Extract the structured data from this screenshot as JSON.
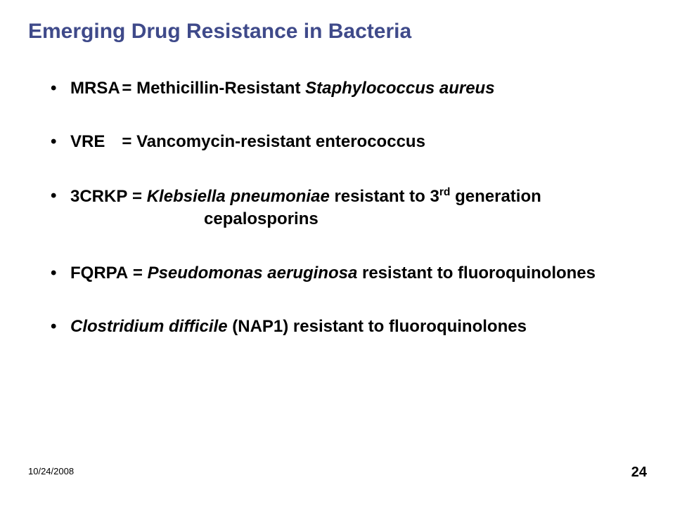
{
  "title": "Emerging Drug Resistance in Bacteria",
  "title_color": "#3f4a8a",
  "title_fontsize": 30,
  "body_fontsize": 24,
  "body_color": "#000000",
  "background_color": "#ffffff",
  "bullets": [
    {
      "abbrev": "MRSA",
      "abbrev_width_ch": "5.5",
      "eq": "= ",
      "pre": "Methicillin-Resistant ",
      "italic": "Staphylococcus aureus",
      "post": ""
    },
    {
      "abbrev": "VRE",
      "abbrev_width_ch": "5.5",
      "eq": "= ",
      "pre": "Vancomycin-resistant enterococcus",
      "italic": "",
      "post": ""
    },
    {
      "abbrev": "3CRKP",
      "abbrev_width_ch": "",
      "eq": " = ",
      "pre": "",
      "italic": "Klebsiella pneumoniae",
      "post_pre": " resistant to 3",
      "sup": "rd",
      "post_after": " generation",
      "cont": "cepalosporins"
    },
    {
      "abbrev": "FQRPA",
      "abbrev_width_ch": "",
      "eq": " = ",
      "pre": "",
      "italic": "Pseudomonas aeruginosa",
      "post": " resistant to fluoroquinolones"
    },
    {
      "abbrev": "",
      "abbrev_width_ch": "",
      "eq": "",
      "pre": "",
      "italic": "Clostridium difficile",
      "post": " (NAP1) resistant to fluoroquinolones"
    }
  ],
  "footer": {
    "date": "10/24/2008",
    "page": "24"
  },
  "footer_date_fontsize": 13,
  "footer_page_fontsize": 20
}
